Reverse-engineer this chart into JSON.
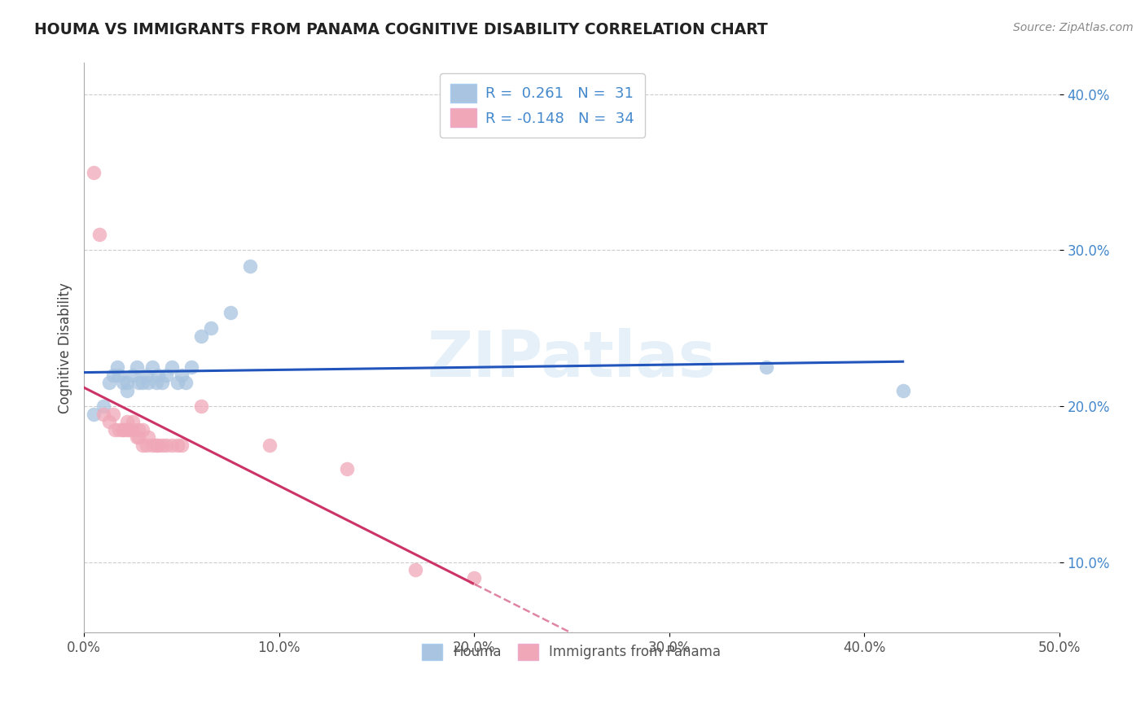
{
  "title": "HOUMA VS IMMIGRANTS FROM PANAMA COGNITIVE DISABILITY CORRELATION CHART",
  "source": "Source: ZipAtlas.com",
  "ylabel": "Cognitive Disability",
  "xlim": [
    0.0,
    0.5
  ],
  "ylim": [
    0.055,
    0.42
  ],
  "x_ticks": [
    0.0,
    0.1,
    0.2,
    0.3,
    0.4,
    0.5
  ],
  "x_tick_labels": [
    "0.0%",
    "10.0%",
    "20.0%",
    "30.0%",
    "40.0%",
    "50.0%"
  ],
  "y_ticks": [
    0.1,
    0.2,
    0.3,
    0.4
  ],
  "y_tick_labels": [
    "10.0%",
    "20.0%",
    "30.0%",
    "40.0%"
  ],
  "houma_R": 0.261,
  "houma_N": 31,
  "panama_R": -0.148,
  "panama_N": 34,
  "houma_color": "#a8c4e0",
  "panama_color": "#f0a8b8",
  "houma_line_color": "#2255bb",
  "panama_line_color": "#cc3366",
  "watermark": "ZIPatlas",
  "houma_x": [
    0.005,
    0.01,
    0.013,
    0.015,
    0.017,
    0.018,
    0.02,
    0.022,
    0.022,
    0.025,
    0.027,
    0.028,
    0.03,
    0.032,
    0.033,
    0.035,
    0.037,
    0.038,
    0.04,
    0.042,
    0.045,
    0.048,
    0.05,
    0.052,
    0.055,
    0.06,
    0.065,
    0.075,
    0.085,
    0.35,
    0.42
  ],
  "houma_y": [
    0.195,
    0.2,
    0.215,
    0.22,
    0.225,
    0.22,
    0.215,
    0.21,
    0.215,
    0.22,
    0.225,
    0.215,
    0.215,
    0.22,
    0.215,
    0.225,
    0.215,
    0.22,
    0.215,
    0.22,
    0.225,
    0.215,
    0.22,
    0.215,
    0.225,
    0.245,
    0.25,
    0.26,
    0.29,
    0.225,
    0.21
  ],
  "panama_x": [
    0.005,
    0.008,
    0.01,
    0.013,
    0.015,
    0.016,
    0.018,
    0.02,
    0.02,
    0.022,
    0.022,
    0.023,
    0.025,
    0.025,
    0.027,
    0.028,
    0.028,
    0.03,
    0.03,
    0.032,
    0.033,
    0.035,
    0.037,
    0.038,
    0.04,
    0.042,
    0.045,
    0.048,
    0.05,
    0.06,
    0.095,
    0.135,
    0.17,
    0.2
  ],
  "panama_y": [
    0.35,
    0.31,
    0.195,
    0.19,
    0.195,
    0.185,
    0.185,
    0.185,
    0.185,
    0.185,
    0.19,
    0.185,
    0.185,
    0.19,
    0.18,
    0.185,
    0.18,
    0.185,
    0.175,
    0.175,
    0.18,
    0.175,
    0.175,
    0.175,
    0.175,
    0.175,
    0.175,
    0.175,
    0.175,
    0.2,
    0.175,
    0.16,
    0.095,
    0.09
  ]
}
